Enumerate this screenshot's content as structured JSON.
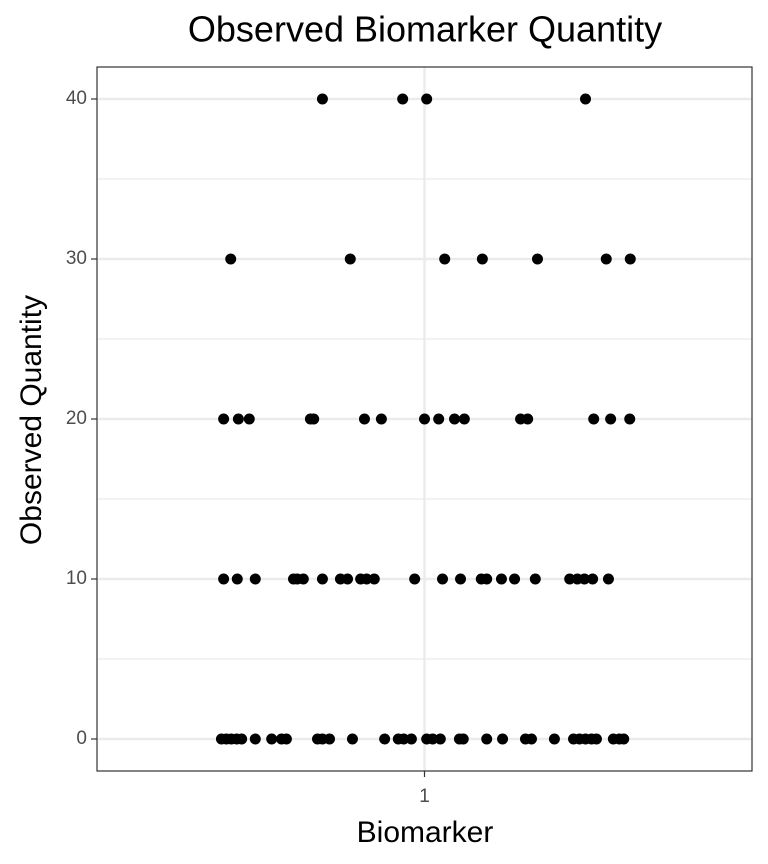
{
  "chart_data": {
    "type": "scatter",
    "title": "Observed Biomarker Quantity",
    "x_label": "Biomarker",
    "y_label": "Observed Quantity",
    "color": "#000000",
    "x": [
      0.813,
      0.96,
      1.004,
      1.295,
      0.645,
      0.864,
      1.037,
      1.106,
      1.207,
      1.333,
      1.377,
      0.632,
      0.659,
      0.679,
      0.791,
      0.797,
      0.89,
      0.921,
      1.0,
      1.026,
      1.055,
      1.073,
      1.176,
      1.189,
      1.31,
      1.341,
      1.376,
      0.632,
      0.657,
      0.69,
      0.76,
      0.767,
      0.778,
      0.813,
      0.846,
      0.859,
      0.883,
      0.894,
      0.908,
      0.982,
      1.033,
      1.066,
      1.104,
      1.114,
      1.141,
      1.165,
      1.203,
      1.266,
      1.28,
      1.293,
      1.308,
      1.337,
      0.628,
      0.637,
      0.646,
      0.656,
      0.665,
      0.69,
      0.72,
      0.738,
      0.747,
      0.804,
      0.813,
      0.826,
      0.868,
      0.927,
      0.952,
      0.962,
      0.976,
      1.004,
      1.015,
      1.029,
      1.064,
      1.071,
      1.114,
      1.143,
      1.185,
      1.196,
      1.238,
      1.273,
      1.284,
      1.295,
      1.306,
      1.315,
      1.346,
      1.357,
      1.365
    ],
    "y": [
      40,
      40,
      40,
      40,
      30,
      30,
      30,
      30,
      30,
      30,
      30,
      20,
      20,
      20,
      20,
      20,
      20,
      20,
      20,
      20,
      20,
      20,
      20,
      20,
      20,
      20,
      20,
      10,
      10,
      10,
      10,
      10,
      10,
      10,
      10,
      10,
      10,
      10,
      10,
      10,
      10,
      10,
      10,
      10,
      10,
      10,
      10,
      10,
      10,
      10,
      10,
      10,
      0,
      0,
      0,
      0,
      0,
      0,
      0,
      0,
      0,
      0,
      0,
      0,
      0,
      0,
      0,
      0,
      0,
      0,
      0,
      0,
      0,
      0,
      0,
      0,
      0,
      0,
      0,
      0,
      0,
      0,
      0,
      0,
      0,
      0,
      0
    ],
    "xlim": [
      0.4,
      1.6
    ],
    "xticks": [
      1
    ],
    "ylim": [
      -2,
      42
    ],
    "yticks": [
      0,
      10,
      20,
      30,
      40
    ],
    "yminor": [
      5,
      15,
      25,
      35
    ],
    "grid": true
  }
}
